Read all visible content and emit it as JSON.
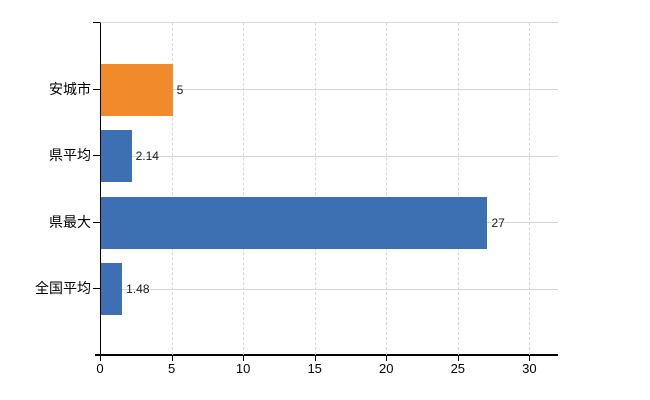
{
  "chart_data": {
    "type": "bar",
    "orientation": "horizontal",
    "title": "",
    "categories": [
      "安城市",
      "県平均",
      "県最大",
      "全国平均"
    ],
    "values": [
      5,
      2.14,
      27,
      1.48
    ],
    "value_labels": [
      "5",
      "2.14",
      "27",
      "1.48"
    ],
    "series": [
      {
        "name": "highlight",
        "color": "#f08a2b",
        "applies_to": [
          "安城市"
        ]
      },
      {
        "name": "default",
        "color": "#3d6fb3",
        "applies_to": [
          "県平均",
          "県最大",
          "全国平均"
        ]
      }
    ],
    "bar_colors": [
      "#f08a2b",
      "#3d6fb3",
      "#3d6fb3",
      "#3d6fb3"
    ],
    "x_ticks": [
      0,
      5,
      10,
      15,
      20,
      25,
      30
    ],
    "x_tick_labels": [
      "0",
      "5",
      "10",
      "15",
      "20",
      "25",
      "30"
    ],
    "xlim": [
      0,
      32
    ],
    "xlabel": "",
    "ylabel": "",
    "grid": true,
    "legend": "none",
    "colors": {
      "background": "#ffffff",
      "axis": "#000000",
      "grid_vertical": "#d7d7d7",
      "grid_horizontal": "#d5d5d5",
      "plot_border_top": "#d9d9d9",
      "text": "#000000",
      "value_text": "#1a1a1a"
    }
  }
}
